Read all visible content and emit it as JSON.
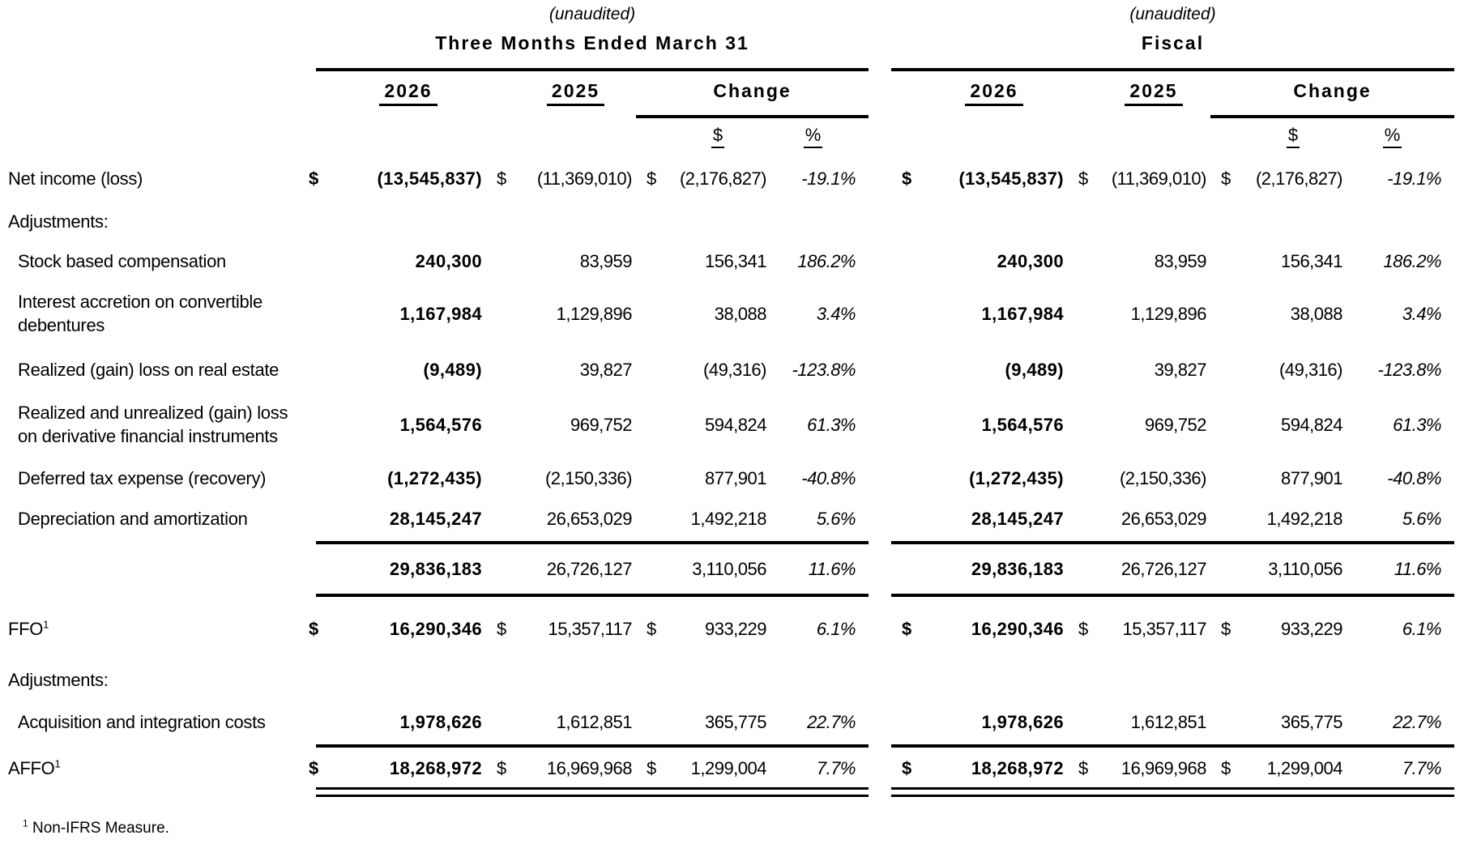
{
  "header": {
    "unaudited": "(unaudited)",
    "left_title": "Three Months Ended March 31",
    "right_title": "Fiscal",
    "year_2026": "2026",
    "year_2025": "2025",
    "change_label": "Change",
    "dollar_header": "$",
    "percent_header": "%",
    "dollar_sign": "$"
  },
  "rows": {
    "net_income": {
      "label": "Net income (loss)",
      "v2026": "(13,545,837)",
      "v2025": "(11,369,010)",
      "chg": "(2,176,827)",
      "pct": "-19.1%"
    },
    "adjustments_1": {
      "label": "Adjustments:"
    },
    "stock_comp": {
      "label": "Stock based compensation",
      "v2026": "240,300",
      "v2025": "83,959",
      "chg": "156,341",
      "pct": "186.2%"
    },
    "interest_accretion": {
      "label": "Interest accretion on convertible debentures",
      "v2026": "1,167,984",
      "v2025": "1,129,896",
      "chg": "38,088",
      "pct": "3.4%"
    },
    "real_estate": {
      "label": "Realized (gain) loss on real estate",
      "v2026": "(9,489)",
      "v2025": "39,827",
      "chg": "(49,316)",
      "pct": "-123.8%"
    },
    "derivative": {
      "label": "Realized and unrealized (gain) loss on derivative financial instruments",
      "v2026": "1,564,576",
      "v2025": "969,752",
      "chg": "594,824",
      "pct": "61.3%"
    },
    "deferred_tax": {
      "label": "Deferred tax expense (recovery)",
      "v2026": "(1,272,435)",
      "v2025": "(2,150,336)",
      "chg": "877,901",
      "pct": "-40.8%"
    },
    "depreciation": {
      "label": "Depreciation and amortization",
      "v2026": "28,145,247",
      "v2025": "26,653,029",
      "chg": "1,492,218",
      "pct": "5.6%"
    },
    "subtotal": {
      "v2026": "29,836,183",
      "v2025": "26,726,127",
      "chg": "3,110,056",
      "pct": "11.6%"
    },
    "ffo": {
      "label": "FFO",
      "sup": "1",
      "v2026": "16,290,346",
      "v2025": "15,357,117",
      "chg": "933,229",
      "pct": "6.1%"
    },
    "adjustments_2": {
      "label": "Adjustments:"
    },
    "acquisition": {
      "label": "Acquisition and integration costs",
      "v2026": "1,978,626",
      "v2025": "1,612,851",
      "chg": "365,775",
      "pct": "22.7%"
    },
    "affo": {
      "label": "AFFO",
      "sup": "1",
      "v2026": "18,268,972",
      "v2025": "16,969,968",
      "chg": "1,299,004",
      "pct": "7.7%"
    }
  },
  "footnote": {
    "sup": "1",
    "text": "Non-IFRS Measure."
  }
}
